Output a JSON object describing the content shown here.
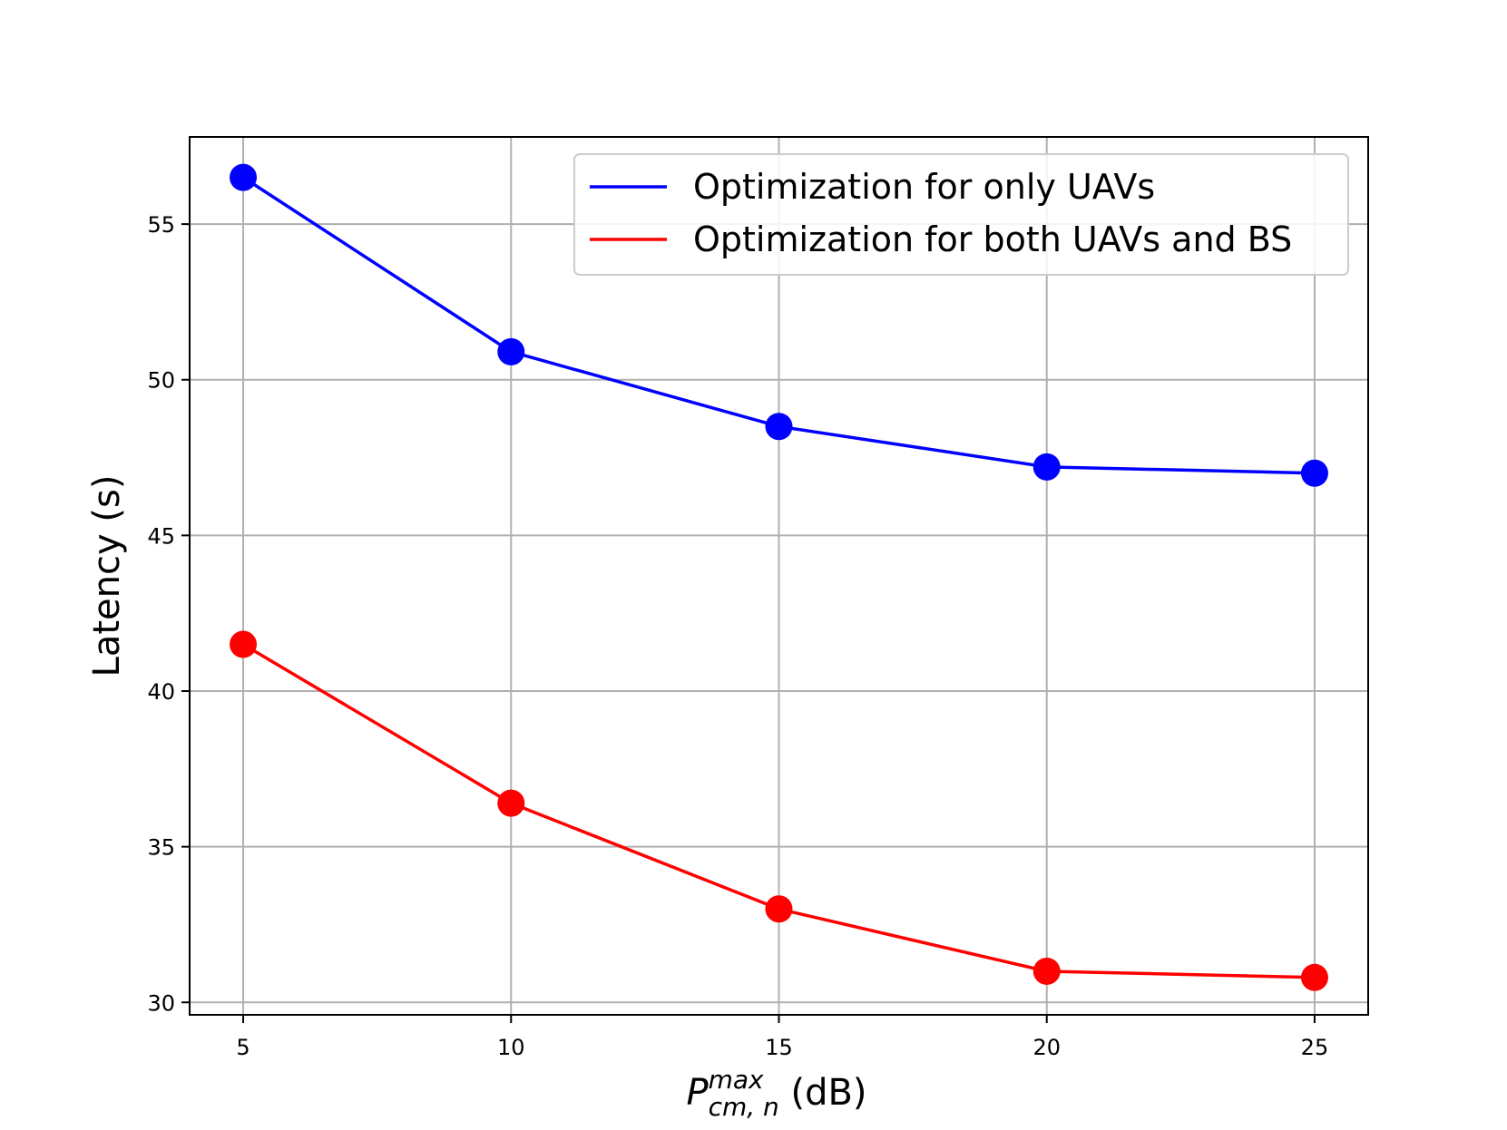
{
  "chart_data": {
    "type": "line",
    "title": "",
    "xlabel": {
      "main": "P",
      "superscript": "max",
      "subscript": "cm, n",
      "suffix": " (dB)"
    },
    "ylabel": "Latency (s)",
    "x": [
      5,
      10,
      15,
      20,
      25
    ],
    "xlim": [
      4,
      26
    ],
    "ylim": [
      29.6,
      57.8
    ],
    "xticks": [
      5,
      10,
      15,
      20,
      25
    ],
    "yticks": [
      30,
      35,
      40,
      45,
      50,
      55
    ],
    "grid": true,
    "legend_position": "top-right",
    "series": [
      {
        "name": "Optimization for only UAVs",
        "color": "#0000ff",
        "marker": "circle",
        "values": [
          56.5,
          50.9,
          48.5,
          47.2,
          47.0
        ]
      },
      {
        "name": "Optimization for both UAVs and BS",
        "color": "#ff0000",
        "marker": "circle",
        "values": [
          41.5,
          36.4,
          33.0,
          31.0,
          30.8
        ]
      }
    ]
  }
}
